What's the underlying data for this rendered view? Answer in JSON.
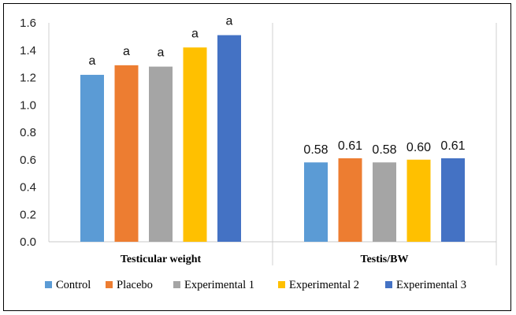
{
  "chart_data": {
    "type": "bar",
    "categories": [
      "Testicular weight",
      "Testis/BW"
    ],
    "series": [
      {
        "name": "Control",
        "color": "#5B9BD5",
        "values": [
          1.22,
          0.58
        ]
      },
      {
        "name": "Placebo",
        "color": "#ED7D31",
        "values": [
          1.29,
          0.61
        ]
      },
      {
        "name": "Experimental 1",
        "color": "#A5A5A5",
        "values": [
          1.28,
          0.58
        ]
      },
      {
        "name": "Experimental 2",
        "color": "#FFC000",
        "values": [
          1.42,
          0.6
        ]
      },
      {
        "name": "Experimental 3",
        "color": "#4472C4",
        "values": [
          1.51,
          0.61
        ]
      }
    ],
    "ylim": [
      0,
      1.6
    ],
    "yticks": [
      "0.0",
      "0.2",
      "0.4",
      "0.6",
      "0.8",
      "1.0",
      "1.2",
      "1.4",
      "1.6"
    ],
    "annotations": [
      [
        "a",
        "a",
        "a",
        "a",
        "a"
      ],
      [
        "0.58",
        "0.61",
        "0.58",
        "0.60",
        "0.61"
      ]
    ],
    "title": "",
    "xlabel": "",
    "ylabel": "",
    "grid": "vertical category separators",
    "legend_position": "bottom"
  }
}
